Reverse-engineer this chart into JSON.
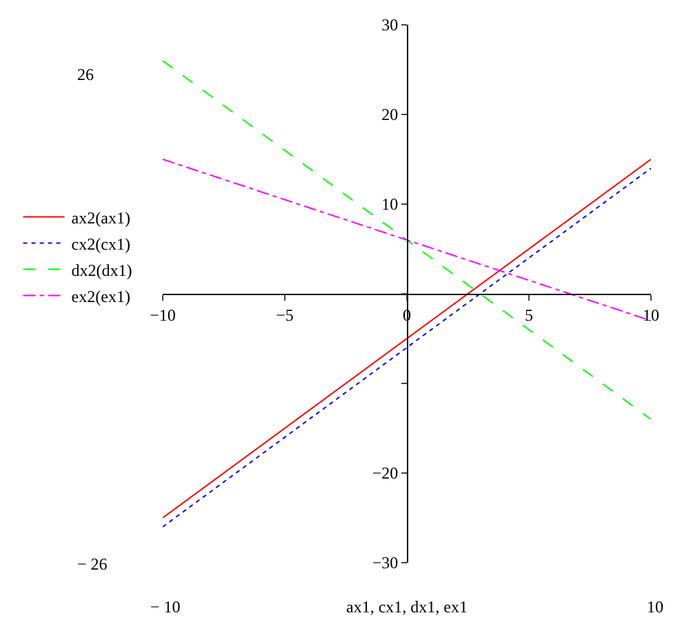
{
  "chart_data": {
    "type": "line",
    "xlabel": "ax1, cx1, dx1, ex1",
    "x": [
      -10,
      10
    ],
    "series": [
      {
        "name": "ax2(ax1)",
        "color": "#ff0000",
        "values": [
          -25,
          15
        ],
        "line_style": "solid"
      },
      {
        "name": "cx2(cx1)",
        "color": "#0000ff",
        "values": [
          -26,
          14
        ],
        "line_style": "dotted"
      },
      {
        "name": "dx2(dx1)",
        "color": "#00ff00",
        "values": [
          26,
          -14
        ],
        "line_style": "dashed"
      },
      {
        "name": "ex2(ex1)",
        "color": "#ff00ff",
        "values": [
          15,
          -3
        ],
        "line_style": "dashdot"
      }
    ],
    "xlim": [
      -10,
      10
    ],
    "xticks": [
      -10,
      -5,
      0,
      5,
      10
    ],
    "ylim": [
      -30,
      30
    ],
    "yticks": [
      {
        "value": -30,
        "label": "−30"
      },
      {
        "value": -20,
        "label": "−20"
      },
      {
        "value": -10,
        "label": null
      },
      {
        "value": 0,
        "label": null
      },
      10,
      20,
      30
    ],
    "annotations": [
      "26",
      "− 26",
      "− 10",
      "10"
    ],
    "legend": "left",
    "marker": "none"
  }
}
